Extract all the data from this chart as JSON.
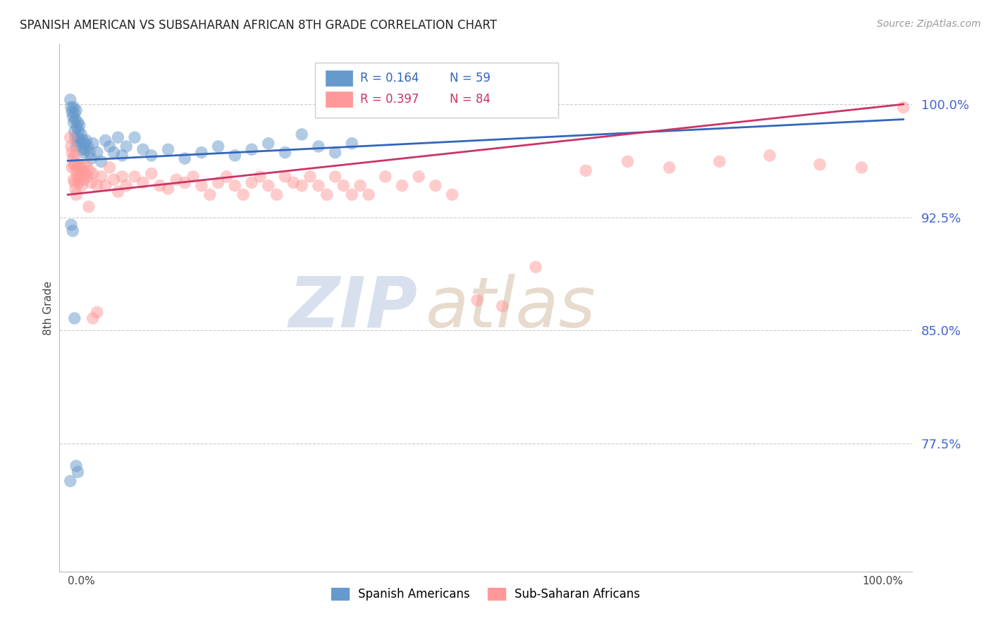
{
  "title": "SPANISH AMERICAN VS SUBSAHARAN AFRICAN 8TH GRADE CORRELATION CHART",
  "source": "Source: ZipAtlas.com",
  "ylabel": "8th Grade",
  "ytick_vals": [
    0.775,
    0.85,
    0.925,
    1.0
  ],
  "ytick_labels": [
    "77.5%",
    "85.0%",
    "92.5%",
    "100.0%"
  ],
  "ymin": 0.69,
  "ymax": 1.04,
  "xmin": -0.01,
  "xmax": 1.01,
  "blue_R": 0.164,
  "blue_N": 59,
  "pink_R": 0.397,
  "pink_N": 84,
  "blue_color": "#6699CC",
  "pink_color": "#FF9999",
  "blue_line_color": "#3366BB",
  "pink_line_color": "#CC3366",
  "legend_label_blue": "Spanish Americans",
  "legend_label_pink": "Sub-Saharan Africans",
  "watermark_zip": "ZIP",
  "watermark_atlas": "atlas",
  "blue_x": [
    0.003,
    0.004,
    0.005,
    0.006,
    0.007,
    0.007,
    0.008,
    0.008,
    0.009,
    0.009,
    0.01,
    0.01,
    0.011,
    0.011,
    0.012,
    0.012,
    0.013,
    0.014,
    0.015,
    0.016,
    0.017,
    0.018,
    0.019,
    0.02,
    0.021,
    0.022,
    0.024,
    0.026,
    0.028,
    0.03,
    0.035,
    0.04,
    0.045,
    0.05,
    0.055,
    0.06,
    0.065,
    0.07,
    0.08,
    0.09,
    0.1,
    0.12,
    0.14,
    0.16,
    0.18,
    0.2,
    0.22,
    0.24,
    0.26,
    0.28,
    0.3,
    0.32,
    0.34,
    0.004,
    0.006,
    0.008,
    0.01,
    0.012,
    0.003
  ],
  "blue_y": [
    1.003,
    0.998,
    0.995,
    0.992,
    0.998,
    0.988,
    0.994,
    0.982,
    0.99,
    0.978,
    0.996,
    0.972,
    0.985,
    0.975,
    0.988,
    0.978,
    0.982,
    0.986,
    0.975,
    0.98,
    0.97,
    0.976,
    0.968,
    0.974,
    0.97,
    0.976,
    0.972,
    0.968,
    0.964,
    0.974,
    0.968,
    0.962,
    0.976,
    0.972,
    0.968,
    0.978,
    0.966,
    0.972,
    0.978,
    0.97,
    0.966,
    0.97,
    0.964,
    0.968,
    0.972,
    0.966,
    0.97,
    0.974,
    0.968,
    0.98,
    0.972,
    0.968,
    0.974,
    0.92,
    0.916,
    0.858,
    0.76,
    0.756,
    0.75
  ],
  "pink_x": [
    0.003,
    0.004,
    0.005,
    0.005,
    0.006,
    0.007,
    0.007,
    0.008,
    0.008,
    0.009,
    0.009,
    0.01,
    0.01,
    0.011,
    0.012,
    0.013,
    0.014,
    0.015,
    0.016,
    0.017,
    0.018,
    0.019,
    0.02,
    0.022,
    0.024,
    0.026,
    0.028,
    0.03,
    0.035,
    0.04,
    0.045,
    0.05,
    0.055,
    0.06,
    0.065,
    0.07,
    0.08,
    0.09,
    0.1,
    0.11,
    0.12,
    0.13,
    0.14,
    0.15,
    0.16,
    0.17,
    0.18,
    0.19,
    0.2,
    0.21,
    0.22,
    0.23,
    0.24,
    0.25,
    0.26,
    0.27,
    0.28,
    0.29,
    0.3,
    0.31,
    0.32,
    0.33,
    0.34,
    0.35,
    0.36,
    0.38,
    0.4,
    0.42,
    0.44,
    0.46,
    0.49,
    0.52,
    0.56,
    0.62,
    0.67,
    0.72,
    0.78,
    0.84,
    0.9,
    0.95,
    0.025,
    0.03,
    0.035,
    1.0
  ],
  "pink_y": [
    0.978,
    0.972,
    0.968,
    0.958,
    0.964,
    0.96,
    0.95,
    0.966,
    0.948,
    0.96,
    0.944,
    0.956,
    0.94,
    0.952,
    0.958,
    0.948,
    0.96,
    0.952,
    0.956,
    0.946,
    0.958,
    0.95,
    0.954,
    0.96,
    0.952,
    0.956,
    0.948,
    0.954,
    0.946,
    0.952,
    0.946,
    0.958,
    0.95,
    0.942,
    0.952,
    0.946,
    0.952,
    0.948,
    0.954,
    0.946,
    0.944,
    0.95,
    0.948,
    0.952,
    0.946,
    0.94,
    0.948,
    0.952,
    0.946,
    0.94,
    0.948,
    0.952,
    0.946,
    0.94,
    0.952,
    0.948,
    0.946,
    0.952,
    0.946,
    0.94,
    0.952,
    0.946,
    0.94,
    0.946,
    0.94,
    0.952,
    0.946,
    0.952,
    0.946,
    0.94,
    0.87,
    0.866,
    0.892,
    0.956,
    0.962,
    0.958,
    0.962,
    0.966,
    0.96,
    0.958,
    0.932,
    0.858,
    0.862,
    0.998
  ]
}
